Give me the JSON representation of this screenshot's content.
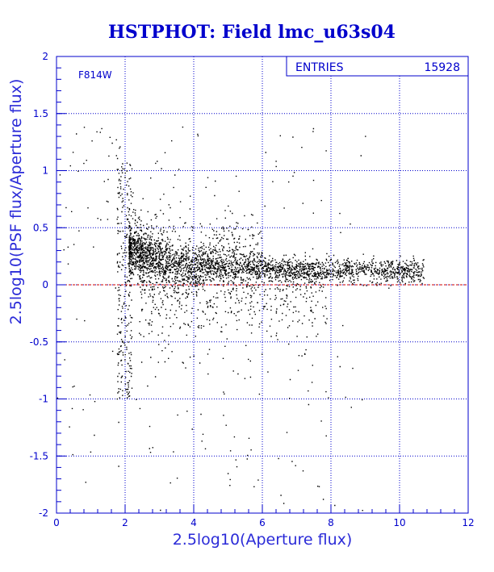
{
  "chart_data": {
    "type": "scatter",
    "title": "HSTPHOT: Field lmc_u63s04",
    "xlabel": "2.5log10(Aperture flux)",
    "ylabel": "2.5log10(PSF flux/Aperture flux)",
    "xlim": [
      0,
      12
    ],
    "ylim": [
      -2,
      2
    ],
    "x_ticks": [
      "0",
      "2",
      "4",
      "6",
      "8",
      "10",
      "12"
    ],
    "y_ticks": [
      "-2",
      "-1.5",
      "-1",
      "-0.5",
      "0",
      "0.5",
      "1",
      "1.5",
      "2"
    ],
    "grid": true,
    "grid_style": "dotted",
    "reference_line": {
      "y": 0,
      "color": "#cc0000",
      "style": "dashed"
    },
    "annotation": "F814W",
    "stats_box": {
      "label": "ENTRIES",
      "value": "15928",
      "placement": "top-right"
    },
    "point_color": "#000000",
    "distribution": {
      "ridge": [
        [
          2.2,
          0.32
        ],
        [
          3.0,
          0.22
        ],
        [
          4.0,
          0.17
        ],
        [
          5.0,
          0.17
        ],
        [
          6.0,
          0.15
        ],
        [
          7.0,
          0.14
        ],
        [
          8.0,
          0.13
        ],
        [
          9.0,
          0.13
        ],
        [
          10.0,
          0.12
        ],
        [
          10.7,
          0.12
        ]
      ],
      "x_extent": [
        0,
        10.7
      ],
      "y_extent": [
        -2,
        1.9
      ]
    }
  },
  "colors": {
    "axis": "#0000cc",
    "grid": "#0000cc",
    "frame": "#0000cc",
    "title": "#0000cc"
  }
}
